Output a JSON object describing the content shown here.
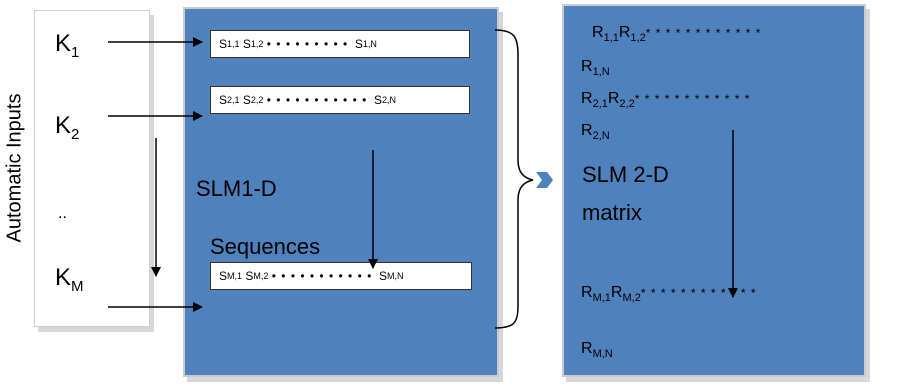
{
  "inputs": {
    "axis_label": "Automatic Inputs",
    "k1": {
      "base": "K",
      "sub": "1"
    },
    "k2": {
      "base": "K",
      "sub": "2"
    },
    "ellipsis": "..",
    "km": {
      "base": "K",
      "sub": "M"
    }
  },
  "sequences": {
    "row1": {
      "a": "S",
      "a_sub": "1,1",
      "b": "S",
      "b_sub": "1,2",
      "dots": "• • • • • • • • •",
      "n": "S",
      "n_sub": "1,N"
    },
    "row2": {
      "a": "S",
      "a_sub": "2,1",
      "b": "S",
      "b_sub": "2,2",
      "dots": "• • • • • • • • • • •",
      "n": "S",
      "n_sub": "2,N"
    },
    "rowm": {
      "a": "S",
      "a_sub": "M,1",
      "b": "S",
      "b_sub": "M,2",
      "dots": "• • • • • • • • • • •",
      "n": "S",
      "n_sub": "M,N"
    },
    "label1": "SLM1-D",
    "label2": "Sequences"
  },
  "matrix": {
    "r11": "R",
    "r11_sub": "1,1",
    "r12": "R",
    "r12_sub": "1,2",
    "r1_dots": "* * * * * * * * * * * *",
    "r1n": "R",
    "r1n_sub": "1,N",
    "r21": "R",
    "r21_sub": "2,1",
    "r22": "R",
    "r22_sub": "2,2",
    "r2_dots": "* * * * * * * * * * * *",
    "r2n": "R",
    "r2n_sub": "2,N",
    "title1": "SLM 2-D",
    "title2": "matrix",
    "rm1": "R",
    "rm1_sub": "M,1",
    "rm2": "R",
    "rm2_sub": "M,2",
    "rm_dots": "* * * * * * * * * * * *",
    "rmn": "R",
    "rmn_sub": "M,N"
  },
  "colors": {
    "panel_blue": "#4f81bd",
    "connector_blue": "#4f81bd"
  },
  "icons": {
    "connector": "chevron-arrow-icon"
  }
}
